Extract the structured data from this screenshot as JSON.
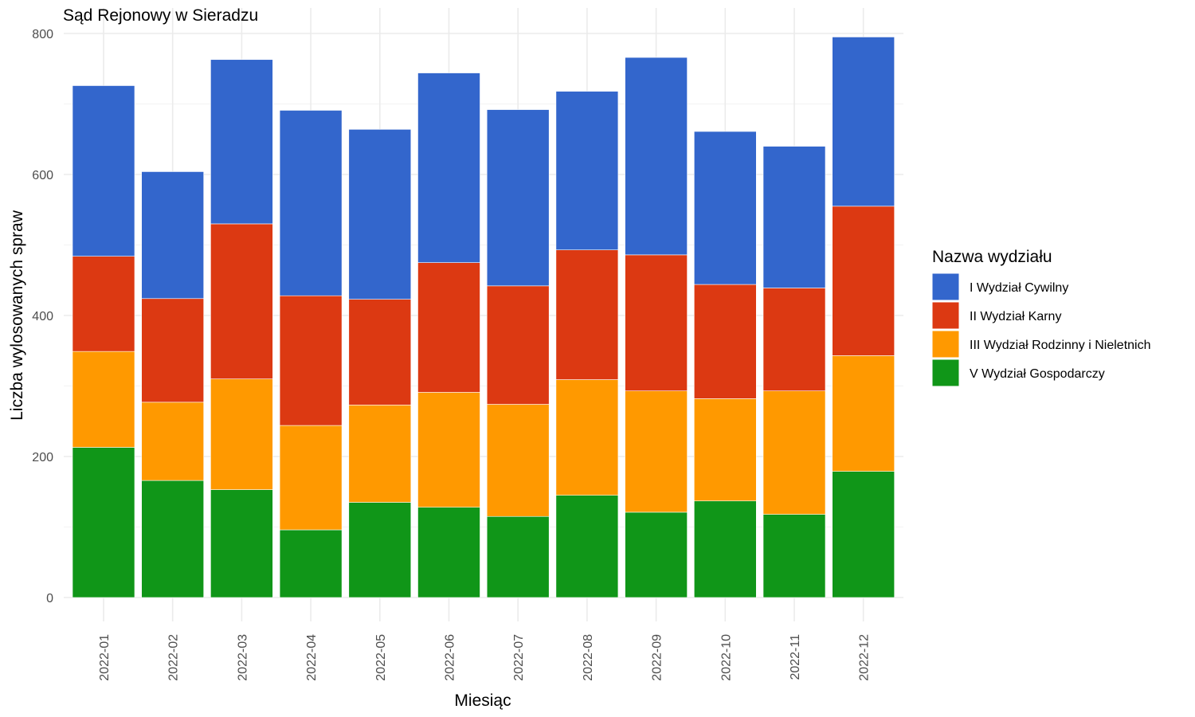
{
  "chart_data": {
    "type": "bar",
    "stacked": true,
    "title": "Sąd Rejonowy w Sieradzu",
    "xlabel": "Miesiąc",
    "ylabel": "Liczba wylosowanych spraw",
    "ylim": [
      0,
      800
    ],
    "yticks": [
      0,
      200,
      400,
      600,
      800
    ],
    "grid": true,
    "legend_position": "right",
    "legend_title": "Nazwa wydziału",
    "categories": [
      "2022-01",
      "2022-02",
      "2022-03",
      "2022-04",
      "2022-05",
      "2022-06",
      "2022-07",
      "2022-08",
      "2022-09",
      "2022-10",
      "2022-11",
      "2022-12"
    ],
    "series": [
      {
        "name": "I Wydział Cywilny",
        "color": "#3366cc",
        "values": [
          242,
          180,
          233,
          263,
          241,
          269,
          250,
          225,
          280,
          217,
          201,
          240
        ]
      },
      {
        "name": "II Wydział Karny",
        "color": "#dc3912",
        "values": [
          135,
          147,
          220,
          184,
          150,
          184,
          168,
          184,
          193,
          162,
          146,
          212
        ]
      },
      {
        "name": "III Wydział Rodzinny i Nieletnich",
        "color": "#ff9900",
        "values": [
          136,
          111,
          157,
          148,
          138,
          163,
          159,
          164,
          172,
          145,
          175,
          164
        ]
      },
      {
        "name": "V Wydział Gospodarczy",
        "color": "#109618",
        "values": [
          213,
          166,
          153,
          96,
          135,
          128,
          115,
          145,
          121,
          137,
          118,
          179
        ]
      }
    ]
  }
}
